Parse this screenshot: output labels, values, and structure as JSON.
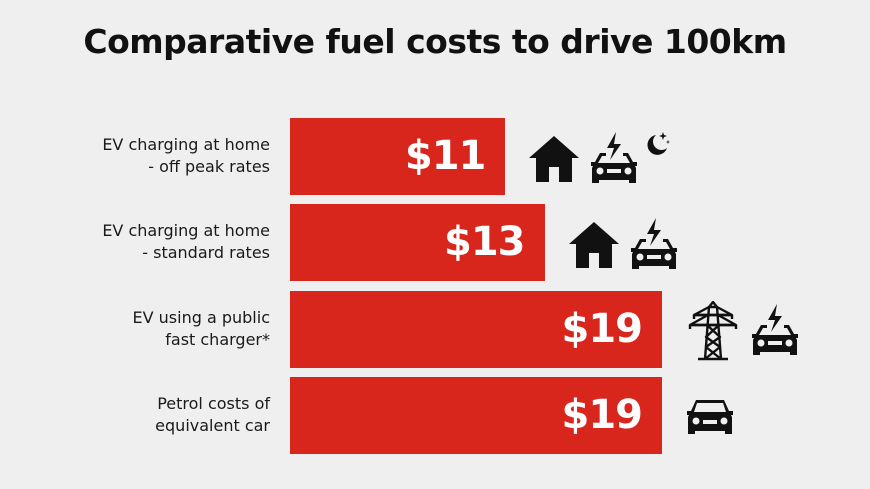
{
  "title": "Comparative fuel costs to drive 100km",
  "chart_data": {
    "type": "bar",
    "orientation": "horizontal",
    "title": "Comparative fuel costs to drive 100km",
    "xlabel": "",
    "ylabel": "",
    "value_prefix": "$",
    "categories": [
      [
        "EV charging at home",
        "- off peak rates"
      ],
      [
        "EV charging at home",
        "- standard rates"
      ],
      [
        "EV using a public",
        "fast charger*"
      ],
      [
        "Petrol costs of",
        "equivalent car"
      ]
    ],
    "values": [
      11,
      13,
      19,
      19
    ],
    "value_labels": [
      "$11",
      "$13",
      "$19",
      "$19"
    ],
    "bar_color": "#d8261d",
    "icons": [
      [
        "house-icon",
        "ev-charging-car-icon",
        "moon-stars-icon"
      ],
      [
        "house-icon",
        "ev-charging-car-icon"
      ],
      [
        "power-pylon-icon",
        "ev-charging-car-icon"
      ],
      [
        "car-icon"
      ]
    ]
  }
}
